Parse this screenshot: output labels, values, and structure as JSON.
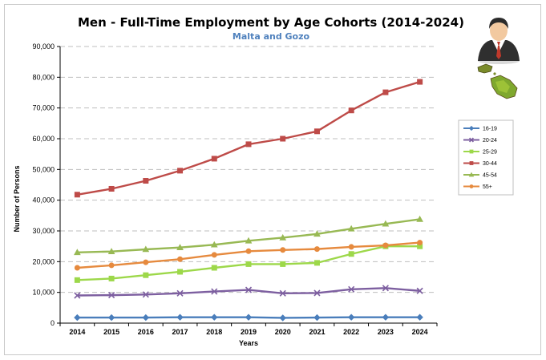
{
  "chart_data": {
    "type": "line",
    "title": "Men - Full-Time Employment by Age Cohorts (2014-2024)",
    "subtitle": "Malta and Gozo",
    "xlabel": "Years",
    "ylabel": "Number of Persons",
    "ylim": [
      0,
      90000
    ],
    "yticks": [
      "0",
      "10,000",
      "20,000",
      "30,000",
      "40,000",
      "50,000",
      "60,000",
      "70,000",
      "80,000",
      "90,000"
    ],
    "ytick_values": [
      0,
      10000,
      20000,
      30000,
      40000,
      50000,
      60000,
      70000,
      80000,
      90000
    ],
    "categories": [
      "2014",
      "2015",
      "2016",
      "2017",
      "2018",
      "2019",
      "2020",
      "2021",
      "2022",
      "2023",
      "2024"
    ],
    "grid": true,
    "legend_position": "right",
    "series": [
      {
        "name": "16-19",
        "color": "#4a7ebb",
        "marker": "diamond",
        "values": [
          1800,
          1800,
          1800,
          1900,
          1900,
          1900,
          1700,
          1800,
          1900,
          1900,
          1900
        ]
      },
      {
        "name": "20-24",
        "color": "#7d5fa0",
        "marker": "x",
        "values": [
          9000,
          9100,
          9300,
          9700,
          10300,
          10800,
          9700,
          9800,
          11000,
          11400,
          10500
        ]
      },
      {
        "name": "25-29",
        "color": "#9dd84a",
        "marker": "square",
        "values": [
          14000,
          14500,
          15600,
          16700,
          18000,
          19200,
          19200,
          19600,
          22500,
          25000,
          25000
        ]
      },
      {
        "name": "30-44",
        "color": "#be4b48",
        "marker": "square",
        "values": [
          41800,
          43700,
          46300,
          49600,
          53500,
          58200,
          60000,
          62400,
          69200,
          75100,
          78500
        ]
      },
      {
        "name": "45-54",
        "color": "#98b954",
        "marker": "triangle",
        "values": [
          23000,
          23300,
          24000,
          24600,
          25500,
          26800,
          27800,
          29000,
          30700,
          32300,
          33800
        ]
      },
      {
        "name": "55+",
        "color": "#e68a3e",
        "marker": "circle",
        "values": [
          18000,
          18800,
          19800,
          20800,
          22200,
          23400,
          23800,
          24100,
          24800,
          25300,
          26200
        ]
      }
    ]
  },
  "decorations": {
    "avatar": {
      "name": "businessman-avatar-icon"
    },
    "map": {
      "name": "malta-gozo-map-icon"
    }
  }
}
